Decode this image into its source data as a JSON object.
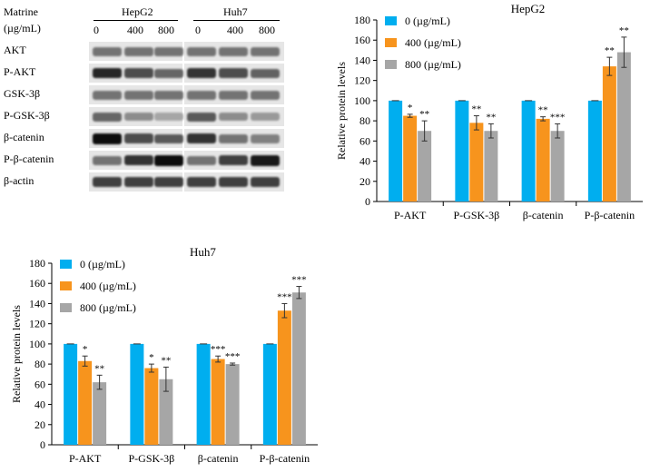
{
  "blot": {
    "header_matrine": "Matrine",
    "header_unit": "(µg/mL)",
    "cell_lines": [
      "HepG2",
      "Huh7"
    ],
    "doses": [
      "0",
      "400",
      "800"
    ],
    "rows": [
      "AKT",
      "P-AKT",
      "GSK-3β",
      "P-GSK-3β",
      "β-catenin",
      "P-β-catenin",
      "β-actin"
    ],
    "band_intensity": [
      [
        0.55,
        0.55,
        0.55,
        0.55,
        0.55,
        0.55
      ],
      [
        0.85,
        0.7,
        0.6,
        0.8,
        0.7,
        0.62
      ],
      [
        0.55,
        0.55,
        0.55,
        0.55,
        0.55,
        0.55
      ],
      [
        0.6,
        0.45,
        0.35,
        0.65,
        0.45,
        0.4
      ],
      [
        0.95,
        0.7,
        0.65,
        0.8,
        0.55,
        0.5
      ],
      [
        0.55,
        0.8,
        0.95,
        0.55,
        0.75,
        0.9
      ],
      [
        0.75,
        0.75,
        0.75,
        0.75,
        0.75,
        0.75
      ]
    ]
  },
  "chart_data": [
    {
      "type": "bar",
      "title": "HepG2",
      "ylabel": "Relative protein levels",
      "xlabel": "",
      "ylim": [
        0,
        180
      ],
      "yticks": [
        "0",
        "20",
        "40",
        "60",
        "80",
        "100",
        "120",
        "140",
        "160",
        "180"
      ],
      "categories": [
        "P-AKT",
        "P-GSK-3β",
        "β-catenin",
        "P-β-catenin"
      ],
      "series": [
        {
          "name": "0 (µg/mL)",
          "color": "#00aeef",
          "values": [
            100,
            100,
            100,
            100
          ],
          "errors": [
            0,
            0,
            0,
            0
          ],
          "sig": [
            "",
            "",
            "",
            ""
          ]
        },
        {
          "name": "400 (µg/mL)",
          "color": "#f7941d",
          "values": [
            85,
            78,
            82,
            134
          ],
          "errors": [
            1.5,
            7,
            2,
            9
          ],
          "sig": [
            "*",
            "**",
            "**",
            "**"
          ]
        },
        {
          "name": "800 (µg/mL)",
          "color": "#a6a6a6",
          "values": [
            70,
            70,
            70,
            148
          ],
          "errors": [
            10,
            7,
            7,
            15
          ],
          "sig": [
            "**",
            "**",
            "***",
            "**"
          ]
        }
      ],
      "legend_position": "top-left",
      "grid": false
    },
    {
      "type": "bar",
      "title": "Huh7",
      "ylabel": "Relative protein levels",
      "xlabel": "",
      "ylim": [
        0,
        180
      ],
      "yticks": [
        "0",
        "20",
        "40",
        "60",
        "80",
        "100",
        "120",
        "140",
        "160",
        "180"
      ],
      "categories": [
        "P-AKT",
        "P-GSK-3β",
        "β-catenin",
        "P-β-catenin"
      ],
      "series": [
        {
          "name": "0 (µg/mL)",
          "color": "#00aeef",
          "values": [
            100,
            100,
            100,
            100
          ],
          "errors": [
            0,
            0,
            0,
            0
          ],
          "sig": [
            "",
            "",
            "",
            ""
          ]
        },
        {
          "name": "400 (µg/mL)",
          "color": "#f7941d",
          "values": [
            83,
            76,
            85,
            133
          ],
          "errors": [
            5,
            4,
            3,
            7
          ],
          "sig": [
            "*",
            "*",
            "***",
            "***"
          ]
        },
        {
          "name": "800 (µg/mL)",
          "color": "#a6a6a6",
          "values": [
            62,
            65,
            80,
            151
          ],
          "errors": [
            7,
            12,
            1,
            6
          ],
          "sig": [
            "**",
            "**",
            "***",
            "***"
          ]
        }
      ],
      "legend_position": "top-left",
      "grid": false
    }
  ]
}
